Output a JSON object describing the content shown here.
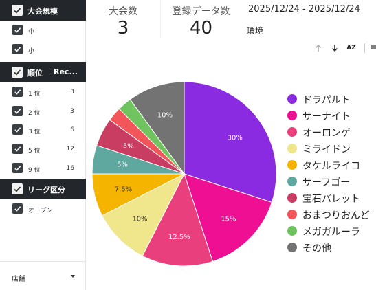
{
  "sidebar": {
    "section_tournament_size": {
      "label": "大会規模",
      "items": [
        {
          "label": "中"
        },
        {
          "label": "小"
        }
      ]
    },
    "section_rank": {
      "label": "順位",
      "label2": "Rec...",
      "items": [
        {
          "label": "1 位",
          "count": "3"
        },
        {
          "label": "2 位",
          "count": "3"
        },
        {
          "label": "3 位",
          "count": "6"
        },
        {
          "label": "5 位",
          "count": "12"
        },
        {
          "label": "9 位",
          "count": "16"
        }
      ]
    },
    "section_league": {
      "label": "リーグ区分",
      "items": [
        {
          "label": "オープン"
        }
      ]
    },
    "store_dropdown": {
      "label": "店舗"
    }
  },
  "stats": {
    "tournaments": {
      "label": "大会数",
      "value": "3"
    },
    "registered": {
      "label": "登録データ数",
      "value": "40"
    }
  },
  "date_range": "2025/12/24 - 2025/12/24",
  "env_label": "環境",
  "toolbar": {
    "sort_az_label": "AZ"
  },
  "chart_data": {
    "type": "pie",
    "categories": [
      "ドラパルト",
      "サーナイト",
      "オーロンゲ",
      "ミライドン",
      "タケルライコ",
      "サーフゴー",
      "宝石バレット",
      "おまつりおんど",
      "メガガルーラ",
      "その他"
    ],
    "values": [
      30,
      15,
      12.5,
      10,
      7.5,
      5,
      5,
      2.5,
      2.5,
      10
    ],
    "labels": [
      "30%",
      "15%",
      "12.5%",
      "10%",
      "7.5%",
      "5%",
      "5%",
      "",
      "",
      "10%"
    ],
    "colors": [
      "#8a2be2",
      "#ee0f93",
      "#ea3f7d",
      "#f0e68c",
      "#f4b400",
      "#5fa8a0",
      "#c83d61",
      "#f2555a",
      "#6fc45f",
      "#737373"
    ]
  }
}
